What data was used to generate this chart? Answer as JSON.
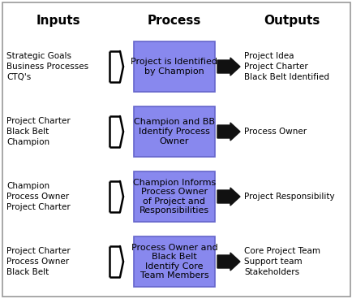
{
  "background_color": "#ffffff",
  "box_color": "#8888ee",
  "box_edge_color": "#6666cc",
  "arrow_color": "#111111",
  "text_color": "#000000",
  "border_color": "#999999",
  "rows": [
    {
      "inputs": [
        "Strategic Goals",
        "Business Processes",
        "CTQ's"
      ],
      "process": "Project is Identified\nby Champion",
      "outputs": [
        "Project Idea",
        "Project Charter",
        "Black Belt Identified"
      ]
    },
    {
      "inputs": [
        "Project Charter",
        "Black Belt",
        "Champion"
      ],
      "process": "Champion and BB\nIdentify Process\nOwner",
      "outputs": [
        "Process Owner"
      ]
    },
    {
      "inputs": [
        "Champion",
        "Process Owner",
        "Project Charter"
      ],
      "process": "Champion Informs\nProcess Owner\nof Project and\nResponsibilities",
      "outputs": [
        "Project Responsibility"
      ]
    },
    {
      "inputs": [
        "Project Charter",
        "Process Owner",
        "Black Belt"
      ],
      "process": "Process Owner and\nBlack Belt\nIdentify Core\nTeam Members",
      "outputs": [
        "Core Project Team",
        "Support team",
        "Stakeholders"
      ]
    }
  ],
  "col_headers": [
    "Inputs",
    "Process",
    "Outputs"
  ],
  "header_fontsize": 11,
  "text_fontsize": 7.5,
  "process_fontsize": 8
}
